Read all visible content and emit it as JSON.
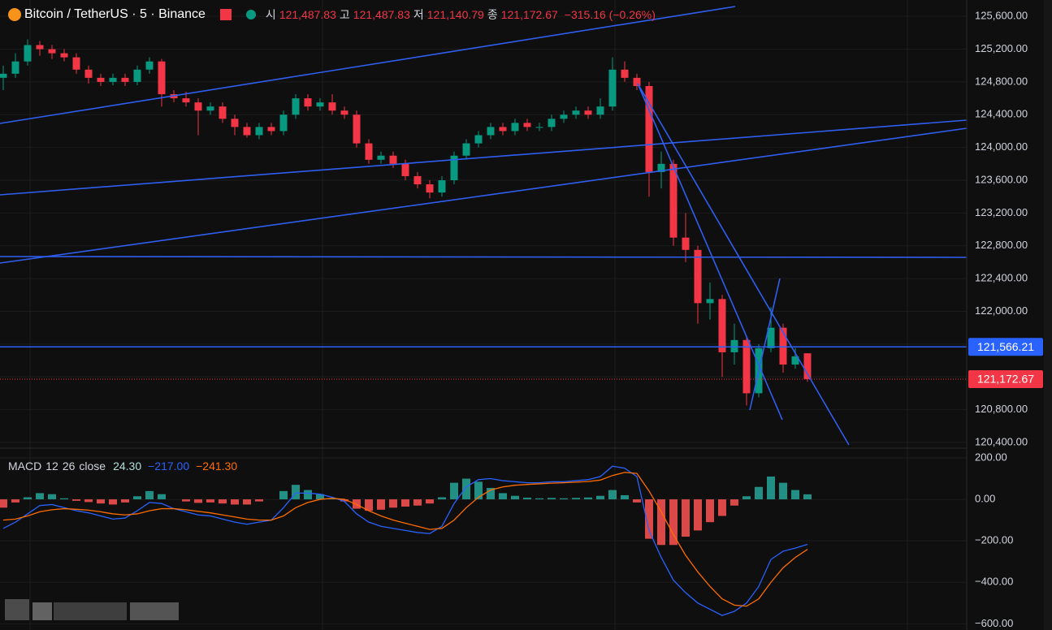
{
  "chart_data": [
    {
      "type": "candlestick",
      "title": "Bitcoin / TetherUS · 5 · Binance",
      "ohlc_labels": [
        "시",
        "고",
        "저",
        "종"
      ],
      "ohlc_values": [
        "121,487.83",
        "121,487.83",
        "121,140.79",
        "121,172.67"
      ],
      "change": "−315.16 (−0.26%)",
      "open": [
        124850,
        124900,
        125050,
        125250,
        125200,
        125150,
        125100,
        124950,
        124850,
        124800,
        124850,
        124800,
        124950,
        125050,
        124650,
        124600,
        124550,
        124450,
        124500,
        124350,
        124250,
        124150,
        124250,
        124200,
        124400,
        124600,
        124500,
        124550,
        124450,
        124400,
        124050,
        123850,
        123900,
        123800,
        123650,
        123550,
        123450,
        123600,
        123900,
        124050,
        124150,
        124250,
        124200,
        124300,
        124250,
        124250,
        124350,
        124400,
        124450,
        124400,
        124500,
        124950,
        124850,
        124750,
        123700,
        123800,
        122900,
        122750,
        122100,
        122150,
        121500,
        121650,
        121000,
        121550,
        121800,
        121350,
        121487.83
      ],
      "high": [
        125000,
        125150,
        125320,
        125300,
        125250,
        125200,
        125150,
        125000,
        124900,
        124900,
        124900,
        125000,
        125100,
        125080,
        124700,
        124680,
        124600,
        124550,
        124550,
        124400,
        124300,
        124300,
        124300,
        124450,
        124650,
        124650,
        124600,
        124650,
        124500,
        124450,
        124100,
        123950,
        123950,
        123850,
        123700,
        123600,
        123650,
        123950,
        124100,
        124200,
        124300,
        124300,
        124350,
        124350,
        124300,
        124400,
        124450,
        124500,
        124500,
        124600,
        125100,
        125050,
        124900,
        124800,
        123950,
        123850,
        123200,
        122800,
        122350,
        122200,
        121850,
        121700,
        121600,
        122050,
        121850,
        121550,
        121487.83
      ],
      "low": [
        124700,
        124850,
        125000,
        125120,
        125080,
        125050,
        124900,
        124780,
        124750,
        124760,
        124750,
        124760,
        124900,
        124500,
        124550,
        124500,
        124150,
        124400,
        124300,
        124150,
        124120,
        124100,
        124150,
        124150,
        124350,
        124450,
        124450,
        124400,
        124350,
        124000,
        123800,
        123800,
        123750,
        123600,
        123500,
        123380,
        123400,
        123550,
        123850,
        124000,
        124100,
        124150,
        124150,
        124200,
        124200,
        124200,
        124300,
        124350,
        124350,
        124350,
        124450,
        124800,
        124700,
        123400,
        123500,
        122800,
        122600,
        121850,
        121900,
        121200,
        121350,
        120850,
        120950,
        121500,
        121250,
        121300,
        121140.79
      ],
      "close": [
        124900,
        125050,
        125250,
        125200,
        125150,
        125100,
        124950,
        124850,
        124800,
        124850,
        124800,
        124950,
        125050,
        124650,
        124600,
        124550,
        124450,
        124500,
        124350,
        124250,
        124150,
        124250,
        124200,
        124400,
        124600,
        124500,
        124550,
        124450,
        124400,
        124050,
        123850,
        123900,
        123800,
        123650,
        123550,
        123450,
        123600,
        123900,
        124050,
        124150,
        124250,
        124200,
        124300,
        124250,
        124250,
        124350,
        124400,
        124450,
        124400,
        124500,
        124950,
        124850,
        124750,
        123700,
        123800,
        122900,
        122750,
        122100,
        122150,
        121500,
        121650,
        121000,
        121550,
        121800,
        121350,
        121450,
        121172.67
      ],
      "up_color": "#089981",
      "down_color": "#f23645",
      "ylim": [
        120330,
        125800
      ],
      "yticks": [
        {
          "value": 125600,
          "label": "125,600.00"
        },
        {
          "value": 125200,
          "label": "125,200.00"
        },
        {
          "value": 124800,
          "label": "124,800.00"
        },
        {
          "value": 124400,
          "label": "124,400.00"
        },
        {
          "value": 124000,
          "label": "124,000.00"
        },
        {
          "value": 123600,
          "label": "123,600.00"
        },
        {
          "value": 123200,
          "label": "123,200.00"
        },
        {
          "value": 122800,
          "label": "122,800.00"
        },
        {
          "value": 122400,
          "label": "122,400.00"
        },
        {
          "value": 122000,
          "label": "122,000.00"
        },
        {
          "value": 121600,
          "label": "121,600.00"
        },
        {
          "value": 121200,
          "label": "121,200.00"
        },
        {
          "value": 120800,
          "label": "120,800.00"
        },
        {
          "value": 120400,
          "label": "120,400.00"
        }
      ],
      "price_lines": [
        {
          "value": 121566.21,
          "label": "121,566.21",
          "color": "#2962ff"
        },
        {
          "value": 121172.67,
          "label": "121,172.67",
          "color": "#f23645"
        }
      ],
      "grid": true
    },
    {
      "type": "macd",
      "title": "MACD",
      "params": [
        "12",
        "26",
        "close"
      ],
      "legend_values": [
        {
          "value": 24.3,
          "label": "24.30",
          "color": "#b2dfdb"
        },
        {
          "value": -217,
          "label": "−217.00",
          "color": "#2962ff"
        },
        {
          "value": -241.3,
          "label": "−241.30",
          "color": "#ff6d00"
        }
      ],
      "histogram": [
        -40,
        -15,
        10,
        30,
        25,
        5,
        -7,
        -13,
        -20,
        -25,
        -15,
        15,
        40,
        25,
        0,
        -10,
        -17,
        -15,
        -20,
        -25,
        -25,
        -10,
        0,
        40,
        70,
        45,
        25,
        5,
        -10,
        -45,
        -55,
        -50,
        -40,
        -35,
        -30,
        -20,
        10,
        80,
        100,
        85,
        55,
        30,
        17,
        8,
        5,
        7,
        5,
        7,
        9,
        17,
        45,
        20,
        -15,
        -190,
        -220,
        -220,
        -180,
        -150,
        -110,
        -80,
        -30,
        15,
        60,
        110,
        80,
        45,
        24.3
      ],
      "macd": [
        -140,
        -110,
        -70,
        -30,
        -25,
        -40,
        -55,
        -65,
        -80,
        -95,
        -90,
        -55,
        -15,
        -20,
        -45,
        -60,
        -75,
        -80,
        -95,
        -110,
        -120,
        -110,
        -100,
        -40,
        30,
        30,
        25,
        10,
        -10,
        -70,
        -110,
        -130,
        -140,
        -150,
        -160,
        -165,
        -130,
        -20,
        60,
        95,
        100,
        90,
        85,
        80,
        80,
        85,
        85,
        90,
        95,
        110,
        160,
        150,
        110,
        -150,
        -280,
        -390,
        -450,
        -500,
        -530,
        -560,
        -540,
        -500,
        -420,
        -290,
        -250,
        -235,
        -217
      ],
      "signal": [
        -100,
        -95,
        -80,
        -60,
        -50,
        -45,
        -48,
        -52,
        -60,
        -70,
        -75,
        -70,
        -55,
        -45,
        -45,
        -50,
        -58,
        -65,
        -75,
        -85,
        -95,
        -100,
        -100,
        -80,
        -40,
        -15,
        0,
        5,
        0,
        -25,
        -55,
        -80,
        -100,
        -115,
        -130,
        -145,
        -140,
        -100,
        -40,
        10,
        45,
        60,
        68,
        72,
        75,
        78,
        80,
        83,
        86,
        93,
        115,
        130,
        125,
        40,
        -60,
        -170,
        -270,
        -350,
        -420,
        -480,
        -510,
        -515,
        -480,
        -400,
        -330,
        -280,
        -241.3
      ],
      "hist_up_color": "#26a69a",
      "hist_down_color": "#ff5252",
      "macd_color": "#2962ff",
      "signal_color": "#ff6d00",
      "ylim": [
        -630,
        243
      ],
      "yticks": [
        {
          "value": 200,
          "label": "200.00"
        },
        {
          "value": 0,
          "label": "0.00"
        },
        {
          "value": -200,
          "label": "−200.00"
        },
        {
          "value": -400,
          "label": "−400.00"
        },
        {
          "value": -600,
          "label": "−600.00"
        }
      ],
      "grid": true
    }
  ]
}
